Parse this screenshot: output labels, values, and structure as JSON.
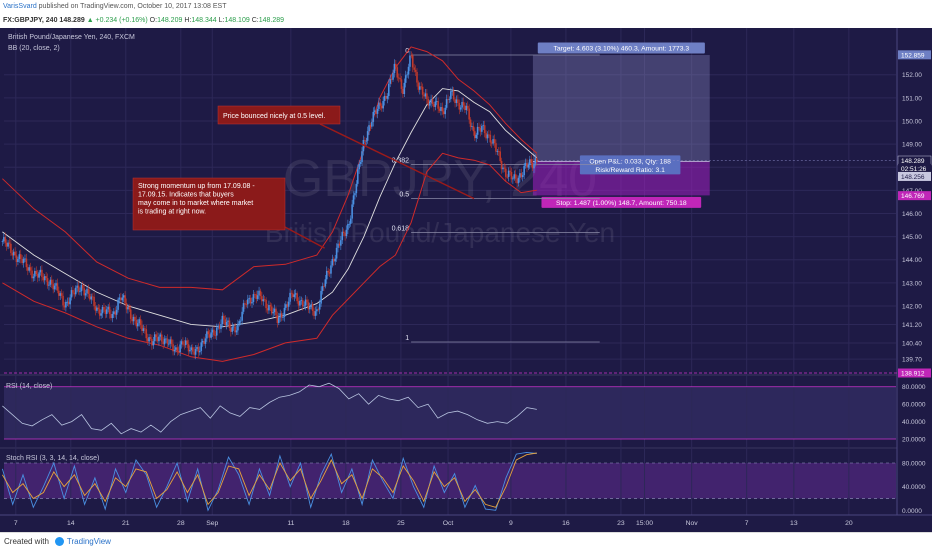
{
  "header": {
    "author": "VarisSvard",
    "published": " published on TradingView.com, October 10, 2017 13:08 EST",
    "symbol": "FX:GBPJPY, 240",
    "last": "148.289",
    "change": "▲ +0.234 (+0.16%)",
    "o_label": "O:",
    "o": "148.209",
    "h_label": "H:",
    "h": "148.344",
    "l_label": "L:",
    "l": "148.109",
    "c_label": "C:",
    "c": "148.289"
  },
  "footer": {
    "created_with": "Created with",
    "brand": "TradingView"
  },
  "colors": {
    "background": "#1e1a45",
    "bull": "#4a90e2",
    "bear": "#c0392b",
    "bb_band": "#cf2a2a",
    "bb_basis": "#e0e0e0",
    "rsi": "#b8c4e0",
    "stoch_k": "#4a90e2",
    "stoch_d": "#e6a23c",
    "magenta": "#cc33cc"
  },
  "chart_data": [
    {
      "type": "candlestick",
      "panel": "price",
      "title": "British Pound/Japanese Yen, 240, FXCM",
      "watermark_symbol": "GBPJPY, 240",
      "watermark_name": "British Pound/Japanese Yen",
      "indicator_label": "BB (20, close, 2)",
      "ylim": [
        139.1,
        153.5
      ],
      "y_ticks": [
        139.7,
        140.4,
        141.2,
        142.0,
        143.0,
        144.0,
        145.0,
        146.0,
        147.0,
        148.0,
        149.0,
        150.0,
        151.0,
        152.0
      ],
      "y_tick_labels": [
        "139.70",
        "140.40",
        "141.20",
        "142.00",
        "143.00",
        "144.00",
        "145.00",
        "146.00",
        "147.00",
        "148.00",
        "149.00",
        "150.00",
        "151.00",
        "152.00"
      ],
      "x_labels": [
        "7",
        "14",
        "21",
        "28",
        "Sep",
        "11",
        "18",
        "25",
        "Oct",
        "9",
        "16",
        "23",
        "15:00",
        "Nov",
        "7",
        "13",
        "20"
      ],
      "x_label_days": [
        7,
        14,
        21,
        28,
        32,
        42,
        49,
        56,
        62,
        70,
        77,
        84,
        87,
        93,
        100,
        106,
        113
      ],
      "series_points": [
        [
          0,
          144.8
        ],
        [
          2,
          144.1
        ],
        [
          4,
          143.4
        ],
        [
          6,
          143.1
        ],
        [
          8,
          142.1
        ],
        [
          10,
          142.9
        ],
        [
          12,
          141.9
        ],
        [
          14,
          141.6
        ],
        [
          15,
          142.4
        ],
        [
          17,
          141.3
        ],
        [
          19,
          140.5
        ],
        [
          21,
          140.6
        ],
        [
          22,
          139.9
        ],
        [
          23,
          140.6
        ],
        [
          24,
          139.9
        ],
        [
          26,
          140.6
        ],
        [
          28,
          141.3
        ],
        [
          30,
          141.0
        ],
        [
          31,
          142.3
        ],
        [
          33,
          142.4
        ],
        [
          35,
          141.4
        ],
        [
          37,
          142.5
        ],
        [
          39,
          141.9
        ],
        [
          40,
          141.8
        ],
        [
          41,
          143.0
        ],
        [
          42,
          144.0
        ],
        [
          44,
          145.5
        ],
        [
          45,
          147.2
        ],
        [
          46,
          149.2
        ],
        [
          47,
          150.0
        ],
        [
          48,
          150.7
        ],
        [
          49,
          151.2
        ],
        [
          50,
          152.4
        ],
        [
          51,
          151.3
        ],
        [
          52,
          152.8
        ],
        [
          53,
          151.5
        ],
        [
          54,
          150.8
        ],
        [
          55,
          150.9
        ],
        [
          56,
          150.2
        ],
        [
          57,
          151.4
        ],
        [
          58,
          150.5
        ],
        [
          59,
          150.8
        ],
        [
          60,
          149.2
        ],
        [
          61,
          149.9
        ],
        [
          62,
          149.1
        ],
        [
          63,
          148.8
        ],
        [
          64,
          147.6
        ],
        [
          65,
          147.6
        ],
        [
          66,
          147.6
        ],
        [
          67,
          148.2
        ],
        [
          68,
          148.3
        ]
      ],
      "bb_upper_points": [
        [
          0,
          147.5
        ],
        [
          4,
          146.2
        ],
        [
          8,
          145.2
        ],
        [
          12,
          143.9
        ],
        [
          16,
          143.2
        ],
        [
          20,
          142.8
        ],
        [
          24,
          142.8
        ],
        [
          28,
          142.7
        ],
        [
          32,
          143.7
        ],
        [
          36,
          143.8
        ],
        [
          40,
          144.2
        ],
        [
          42,
          145.2
        ],
        [
          44,
          146.8
        ],
        [
          46,
          148.8
        ],
        [
          48,
          151.0
        ],
        [
          50,
          152.3
        ],
        [
          52,
          153.2
        ],
        [
          54,
          153.0
        ],
        [
          56,
          152.6
        ],
        [
          58,
          151.8
        ],
        [
          60,
          151.3
        ],
        [
          62,
          150.7
        ],
        [
          64,
          149.9
        ],
        [
          66,
          149.2
        ],
        [
          68,
          148.6
        ]
      ],
      "bb_basis_points": [
        [
          0,
          145.2
        ],
        [
          4,
          144.2
        ],
        [
          8,
          143.4
        ],
        [
          12,
          142.6
        ],
        [
          16,
          142.0
        ],
        [
          20,
          141.6
        ],
        [
          24,
          141.2
        ],
        [
          28,
          141.1
        ],
        [
          32,
          141.3
        ],
        [
          36,
          141.6
        ],
        [
          40,
          142.1
        ],
        [
          42,
          142.6
        ],
        [
          44,
          143.6
        ],
        [
          46,
          145.0
        ],
        [
          48,
          146.7
        ],
        [
          50,
          148.2
        ],
        [
          52,
          149.5
        ],
        [
          54,
          150.7
        ],
        [
          56,
          151.4
        ],
        [
          58,
          151.3
        ],
        [
          60,
          150.8
        ],
        [
          62,
          150.4
        ],
        [
          64,
          149.6
        ],
        [
          66,
          149.0
        ],
        [
          68,
          148.4
        ]
      ],
      "bb_lower_points": [
        [
          0,
          143.0
        ],
        [
          4,
          142.2
        ],
        [
          8,
          141.7
        ],
        [
          12,
          141.1
        ],
        [
          16,
          140.6
        ],
        [
          20,
          140.3
        ],
        [
          24,
          139.8
        ],
        [
          28,
          139.6
        ],
        [
          32,
          139.9
        ],
        [
          36,
          140.4
        ],
        [
          40,
          140.6
        ],
        [
          42,
          141.6
        ],
        [
          44,
          142.3
        ],
        [
          46,
          143.0
        ],
        [
          48,
          143.7
        ],
        [
          50,
          144.2
        ],
        [
          52,
          145.6
        ],
        [
          54,
          147.8
        ],
        [
          56,
          148.6
        ],
        [
          58,
          148.4
        ],
        [
          60,
          148.3
        ],
        [
          62,
          148.1
        ],
        [
          64,
          147.4
        ],
        [
          66,
          146.9
        ],
        [
          68,
          147.0
        ]
      ],
      "fib_levels": [
        {
          "label": "0",
          "value": 152.85
        },
        {
          "label": "0.382",
          "value": 148.11
        },
        {
          "label": "0.5",
          "value": 146.64
        },
        {
          "label": "0.618",
          "value": 145.18
        },
        {
          "label": "1",
          "value": 140.44
        }
      ],
      "fib_start_day": 52,
      "fib_end_day": 76,
      "position": {
        "entry": 148.25,
        "target_price": 152.85,
        "stop_price": 146.78,
        "start_day": 67.5,
        "end_day": 90,
        "target_label": "Target: 4.603 (3.10%) 460.3, Amount: 1773.3",
        "stop_label": "Stop: 1.487 (1.00%) 148.7, Amount: 750.18",
        "pnl_label": "Open P&L: 0.033, Qty: 188",
        "rr_label": "Risk/Reward Ratio: 3.1"
      },
      "price_tags": [
        {
          "label": "152.859",
          "value": 152.859,
          "kind": "target"
        },
        {
          "label": "148.289",
          "value": 148.289,
          "kind": "last"
        },
        {
          "label": "02:51:26",
          "value": 147.95,
          "kind": "countdown"
        },
        {
          "label": "148.256",
          "value": 147.6,
          "kind": "entry"
        },
        {
          "label": "146.769",
          "value": 146.769,
          "kind": "stop"
        },
        {
          "label": "138.912",
          "value": 139.1,
          "kind": "low"
        }
      ],
      "annotations": [
        {
          "text": "Price bounced nicely at 0.5 level.",
          "day": 60,
          "price": 146.64
        },
        {
          "text": "Strong momentum up from 17.09.08 - 17.09.15. Indicates that buyers may come in to market where market is trading at right now.",
          "day": 41,
          "price": 144.5
        }
      ]
    },
    {
      "type": "line",
      "panel": "rsi",
      "indicator_label": "RSI (14, close)",
      "ylim": [
        12,
        90
      ],
      "y_ticks": [
        20,
        40,
        60,
        80
      ],
      "y_tick_labels": [
        "20.0000",
        "40.0000",
        "60.0000",
        "80.0000"
      ],
      "bands": [
        20,
        80
      ],
      "series": [
        {
          "values": [
            58,
            48,
            38,
            35,
            42,
            48,
            36,
            40,
            48,
            32,
            30,
            38,
            26,
            32,
            28,
            36,
            28,
            40,
            48,
            52,
            56,
            44,
            58,
            50,
            46,
            56,
            54,
            62,
            68,
            70,
            74,
            82,
            80,
            84,
            78,
            66,
            72,
            60,
            70,
            66,
            64,
            68,
            56,
            60,
            44,
            50,
            52,
            48,
            42,
            38,
            40,
            38,
            46,
            56,
            54
          ]
        }
      ]
    },
    {
      "type": "line",
      "panel": "stoch_rsi",
      "indicator_label": "Stoch RSI (3, 3, 14, 14, close)",
      "ylim": [
        -8,
        102
      ],
      "y_ticks": [
        0,
        40,
        80
      ],
      "y_tick_labels": [
        "0.0000",
        "40.0000",
        "80.0000"
      ],
      "bands": [
        20,
        80
      ],
      "series": [
        {
          "values": [
            70,
            10,
            60,
            5,
            40,
            80,
            20,
            75,
            10,
            55,
            2,
            70,
            30,
            85,
            60,
            5,
            40,
            80,
            15,
            70,
            0,
            35,
            90,
            60,
            10,
            70,
            25,
            92,
            40,
            80,
            5,
            60,
            95,
            30,
            70,
            10,
            85,
            50,
            20,
            88,
            40,
            5,
            75,
            30,
            62,
            5,
            42,
            2,
            0,
            55,
            95,
            98,
            96
          ]
        },
        {
          "values": [
            60,
            30,
            45,
            20,
            30,
            65,
            40,
            60,
            25,
            45,
            15,
            55,
            40,
            70,
            65,
            20,
            35,
            65,
            30,
            60,
            10,
            30,
            75,
            70,
            25,
            60,
            35,
            80,
            50,
            70,
            20,
            50,
            85,
            45,
            60,
            20,
            70,
            55,
            30,
            75,
            50,
            15,
            65,
            40,
            55,
            15,
            35,
            10,
            5,
            40,
            85,
            94,
            97
          ]
        }
      ]
    }
  ]
}
